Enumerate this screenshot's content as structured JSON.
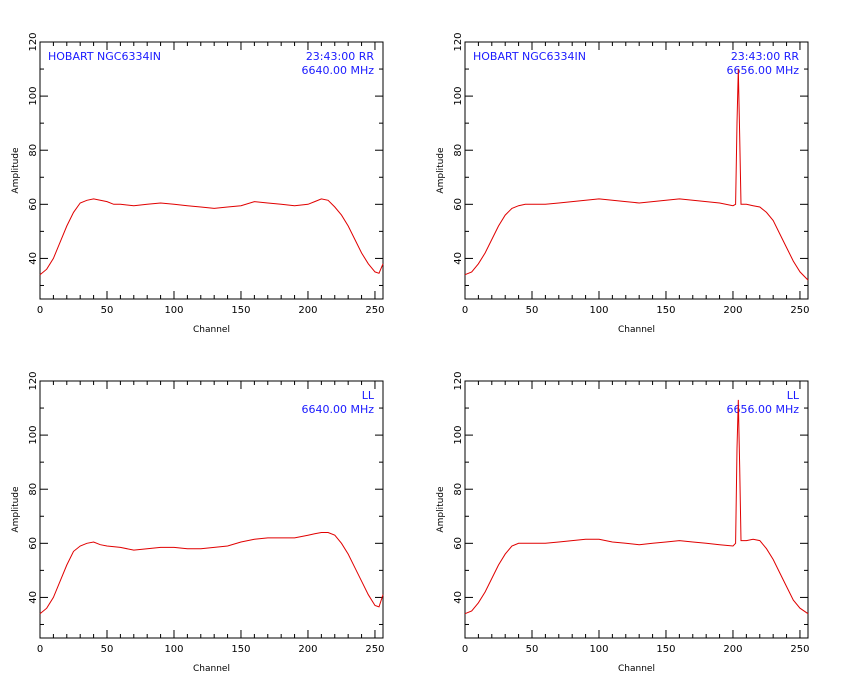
{
  "chart_data": [
    {
      "type": "line",
      "xlabel": "Channel",
      "ylabel": "Amplitude",
      "xlim": [
        0,
        256
      ],
      "ylim": [
        25,
        120
      ],
      "x_ticks": [
        "0",
        "50",
        "100",
        "150",
        "200",
        "250"
      ],
      "y_ticks": [
        "40",
        "60",
        "80",
        "100",
        "120"
      ],
      "annotations": {
        "top_left": "HOBART NGC6334IN",
        "top_right": "23:43:00  RR",
        "freq": "6640.00  MHz"
      },
      "line_color": "#e00000",
      "series": [
        {
          "x": [
            0,
            5,
            10,
            15,
            20,
            25,
            30,
            35,
            40,
            45,
            50,
            55,
            60,
            70,
            80,
            90,
            100,
            110,
            120,
            130,
            140,
            150,
            160,
            170,
            180,
            190,
            200,
            205,
            210,
            215,
            220,
            225,
            230,
            235,
            240,
            245,
            250,
            253,
            256
          ],
          "y": [
            34,
            36,
            40,
            46,
            52,
            57,
            60.5,
            61.5,
            62,
            61.5,
            61,
            60,
            60,
            59.5,
            60,
            60.5,
            60,
            59.5,
            59,
            58.5,
            59,
            59.5,
            61,
            60.5,
            60,
            59.5,
            60,
            61,
            62,
            61.5,
            59,
            56,
            52,
            47,
            42,
            38,
            35,
            34.5,
            38
          ]
        }
      ]
    },
    {
      "type": "line",
      "xlabel": "Channel",
      "ylabel": "Amplitude",
      "xlim": [
        0,
        256
      ],
      "ylim": [
        25,
        120
      ],
      "x_ticks": [
        "0",
        "50",
        "100",
        "150",
        "200",
        "250"
      ],
      "y_ticks": [
        "40",
        "60",
        "80",
        "100",
        "120"
      ],
      "annotations": {
        "top_left": "HOBART NGC6334IN",
        "top_right": "23:43:00  RR",
        "freq": "6656.00  MHz"
      },
      "line_color": "#e00000",
      "series": [
        {
          "x": [
            0,
            5,
            10,
            15,
            20,
            25,
            30,
            35,
            40,
            45,
            50,
            60,
            70,
            80,
            90,
            100,
            110,
            120,
            130,
            140,
            150,
            160,
            170,
            180,
            190,
            200,
            202,
            203,
            204,
            205,
            206,
            208,
            210,
            215,
            220,
            225,
            230,
            235,
            240,
            245,
            250,
            256
          ],
          "y": [
            34,
            35,
            38,
            42,
            47,
            52,
            56,
            58.5,
            59.5,
            60,
            60,
            60,
            60.5,
            61,
            61.5,
            62,
            61.5,
            61,
            60.5,
            61,
            61.5,
            62,
            61.5,
            61,
            60.5,
            59.5,
            60,
            90,
            110,
            85,
            60,
            60,
            60,
            59.5,
            59,
            57,
            54,
            49,
            44,
            39,
            35,
            32
          ]
        }
      ]
    },
    {
      "type": "line",
      "xlabel": "Channel",
      "ylabel": "Amplitude",
      "xlim": [
        0,
        256
      ],
      "ylim": [
        25,
        120
      ],
      "x_ticks": [
        "0",
        "50",
        "100",
        "150",
        "200",
        "250"
      ],
      "y_ticks": [
        "40",
        "60",
        "80",
        "100",
        "120"
      ],
      "annotations": {
        "top_left": "",
        "top_right": "LL",
        "freq": "6640.00  MHz"
      },
      "line_color": "#e00000",
      "series": [
        {
          "x": [
            0,
            5,
            10,
            15,
            20,
            25,
            30,
            35,
            40,
            45,
            50,
            60,
            70,
            80,
            90,
            100,
            110,
            120,
            130,
            140,
            150,
            160,
            170,
            180,
            190,
            200,
            205,
            210,
            215,
            220,
            225,
            230,
            235,
            240,
            245,
            250,
            253,
            256
          ],
          "y": [
            34,
            36,
            40,
            46,
            52,
            57,
            59,
            60,
            60.5,
            59.5,
            59,
            58.5,
            57.5,
            58,
            58.5,
            58.5,
            58,
            58,
            58.5,
            59,
            60.5,
            61.5,
            62,
            62,
            62,
            63,
            63.5,
            64,
            64,
            63,
            60,
            56,
            51,
            46,
            41,
            37,
            36.5,
            41
          ]
        }
      ]
    },
    {
      "type": "line",
      "xlabel": "Channel",
      "ylabel": "Amplitude",
      "xlim": [
        0,
        256
      ],
      "ylim": [
        25,
        120
      ],
      "x_ticks": [
        "0",
        "50",
        "100",
        "150",
        "200",
        "250"
      ],
      "y_ticks": [
        "40",
        "60",
        "80",
        "100",
        "120"
      ],
      "annotations": {
        "top_left": "",
        "top_right": "LL",
        "freq": "6656.00  MHz"
      },
      "line_color": "#e00000",
      "series": [
        {
          "x": [
            0,
            5,
            10,
            15,
            20,
            25,
            30,
            35,
            40,
            45,
            50,
            60,
            70,
            80,
            90,
            100,
            110,
            120,
            130,
            140,
            150,
            160,
            170,
            180,
            190,
            200,
            202,
            203,
            204,
            205,
            206,
            208,
            210,
            215,
            220,
            225,
            230,
            235,
            240,
            245,
            250,
            256
          ],
          "y": [
            34,
            35,
            38,
            42,
            47,
            52,
            56,
            59,
            60,
            60,
            60,
            60,
            60.5,
            61,
            61.5,
            61.5,
            60.5,
            60,
            59.5,
            60,
            60.5,
            61,
            60.5,
            60,
            59.5,
            59,
            60,
            95,
            113,
            88,
            61,
            61,
            61,
            61.5,
            61,
            58,
            54,
            49,
            44,
            39,
            36,
            34
          ]
        }
      ]
    }
  ]
}
